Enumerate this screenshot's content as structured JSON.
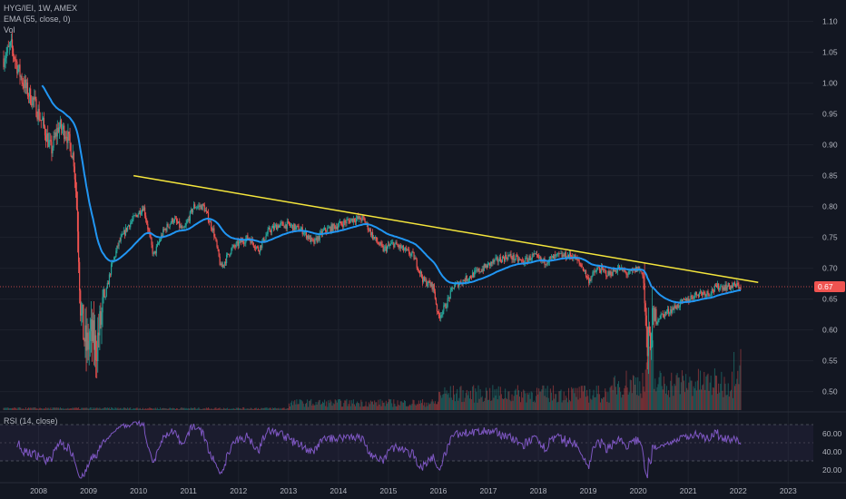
{
  "legend": {
    "symbol_line": "HYG/IEI, 1W, AMEX",
    "ema_line": "EMA (55, close, 0)",
    "vol_line": "Vol"
  },
  "rsi_legend": "RSI (14, close)",
  "current_price_label": "0.67",
  "colors": {
    "background": "#131722",
    "grid": "#1e222d",
    "up": "#26a69a",
    "down": "#ef5350",
    "ema": "#2196f3",
    "trendline": "#f5e63c",
    "rsi": "#7e57c2",
    "price_line": "#ef5350",
    "axis_text": "#b2b5be"
  },
  "chart_data": {
    "type": "candlestick",
    "symbol": "HYG/IEI",
    "interval": "1W",
    "exchange": "AMEX",
    "x_tick_labels": [
      "2008",
      "2009",
      "2010",
      "2011",
      "2012",
      "2013",
      "2014",
      "2015",
      "2016",
      "2017",
      "2018",
      "2019",
      "2020",
      "2021",
      "2022",
      "2023"
    ],
    "y_tick_labels": [
      "1.10",
      "1.05",
      "1.00",
      "0.95",
      "0.90",
      "0.85",
      "0.80",
      "0.75",
      "0.70",
      "0.65",
      "0.60",
      "0.55",
      "0.50"
    ],
    "ylim": [
      0.47,
      1.12
    ],
    "xlim": [
      2007.3,
      2023.5
    ],
    "price_anchors": [
      [
        2007.3,
        1.04
      ],
      [
        2007.45,
        1.06
      ],
      [
        2007.6,
        1.02
      ],
      [
        2007.75,
        0.99
      ],
      [
        2007.9,
        0.97
      ],
      [
        2008.1,
        0.93
      ],
      [
        2008.25,
        0.89
      ],
      [
        2008.4,
        0.93
      ],
      [
        2008.55,
        0.92
      ],
      [
        2008.7,
        0.88
      ],
      [
        2008.78,
        0.78
      ],
      [
        2008.85,
        0.62
      ],
      [
        2008.95,
        0.57
      ],
      [
        2009.05,
        0.59
      ],
      [
        2009.15,
        0.57
      ],
      [
        2009.3,
        0.64
      ],
      [
        2009.45,
        0.7
      ],
      [
        2009.6,
        0.74
      ],
      [
        2009.8,
        0.77
      ],
      [
        2010.0,
        0.79
      ],
      [
        2010.1,
        0.8
      ],
      [
        2010.3,
        0.72
      ],
      [
        2010.5,
        0.76
      ],
      [
        2010.7,
        0.78
      ],
      [
        2010.9,
        0.76
      ],
      [
        2011.1,
        0.8
      ],
      [
        2011.3,
        0.8
      ],
      [
        2011.5,
        0.76
      ],
      [
        2011.65,
        0.7
      ],
      [
        2011.85,
        0.73
      ],
      [
        2012.0,
        0.74
      ],
      [
        2012.2,
        0.75
      ],
      [
        2012.4,
        0.73
      ],
      [
        2012.6,
        0.76
      ],
      [
        2012.8,
        0.77
      ],
      [
        2013.0,
        0.77
      ],
      [
        2013.3,
        0.76
      ],
      [
        2013.5,
        0.74
      ],
      [
        2013.7,
        0.76
      ],
      [
        2014.0,
        0.77
      ],
      [
        2014.3,
        0.78
      ],
      [
        2014.5,
        0.78
      ],
      [
        2014.7,
        0.75
      ],
      [
        2014.9,
        0.73
      ],
      [
        2015.1,
        0.74
      ],
      [
        2015.3,
        0.73
      ],
      [
        2015.5,
        0.72
      ],
      [
        2015.7,
        0.68
      ],
      [
        2015.9,
        0.67
      ],
      [
        2016.0,
        0.62
      ],
      [
        2016.15,
        0.64
      ],
      [
        2016.3,
        0.67
      ],
      [
        2016.5,
        0.68
      ],
      [
        2016.7,
        0.69
      ],
      [
        2016.9,
        0.7
      ],
      [
        2017.1,
        0.71
      ],
      [
        2017.4,
        0.72
      ],
      [
        2017.7,
        0.71
      ],
      [
        2017.9,
        0.72
      ],
      [
        2018.1,
        0.71
      ],
      [
        2018.4,
        0.72
      ],
      [
        2018.7,
        0.72
      ],
      [
        2018.9,
        0.7
      ],
      [
        2019.0,
        0.68
      ],
      [
        2019.2,
        0.7
      ],
      [
        2019.4,
        0.69
      ],
      [
        2019.6,
        0.7
      ],
      [
        2019.8,
        0.69
      ],
      [
        2020.0,
        0.7
      ],
      [
        2020.1,
        0.69
      ],
      [
        2020.18,
        0.56
      ],
      [
        2020.25,
        0.6
      ],
      [
        2020.4,
        0.62
      ],
      [
        2020.6,
        0.63
      ],
      [
        2020.8,
        0.64
      ],
      [
        2021.0,
        0.65
      ],
      [
        2021.2,
        0.66
      ],
      [
        2021.4,
        0.66
      ],
      [
        2021.6,
        0.67
      ],
      [
        2021.8,
        0.67
      ],
      [
        2021.95,
        0.672
      ],
      [
        2022.05,
        0.67
      ]
    ],
    "trendline": {
      "x": [
        2009.9,
        2022.4
      ],
      "y": [
        0.85,
        0.677
      ]
    },
    "current_price": 0.67,
    "rsi": {
      "name": "RSI (14, close)",
      "levels": [
        70,
        30
      ],
      "y_tick_labels": [
        "60.00",
        "40.00",
        "20.00"
      ],
      "ylim": [
        10,
        80
      ]
    }
  }
}
